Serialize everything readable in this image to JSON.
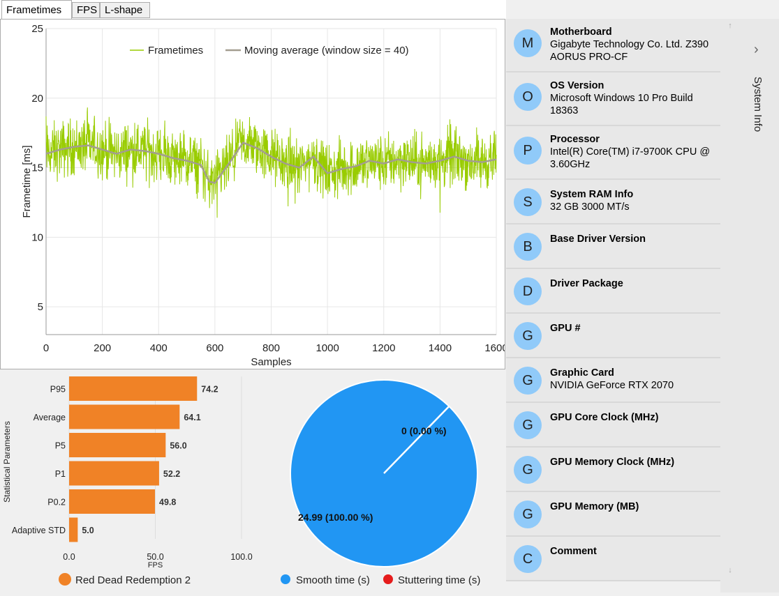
{
  "tabs": [
    {
      "label": "Frametimes",
      "active": true
    },
    {
      "label": "FPS",
      "active": false
    },
    {
      "label": "L-shape",
      "active": false
    }
  ],
  "colors": {
    "frametime_line": "#99cc00",
    "moving_average": "#a39d8f",
    "bar": "#f08226",
    "smooth": "#2196f3",
    "stutter": "#e51c1c",
    "avatar": "#90caf9"
  },
  "chart_data": [
    {
      "type": "line",
      "name": "frametimes-chart",
      "xlabel": "Samples",
      "ylabel": "Frametime [ms]",
      "xlim": [
        0,
        1600
      ],
      "ylim": [
        3,
        25
      ],
      "x_ticks": [
        "0",
        "200",
        "400",
        "600",
        "800",
        "1000",
        "1200",
        "1400",
        "1600"
      ],
      "y_ticks": [
        "5",
        "10",
        "15",
        "20",
        "25"
      ],
      "grid": true,
      "legend_position": "top",
      "series": [
        {
          "name": "Frametimes",
          "note_values": "noisy per-sample frametimes around the moving average with ~±1.5ms noise"
        },
        {
          "name": "Moving average (window size = 40)",
          "x": [
            0,
            50,
            100,
            150,
            200,
            250,
            300,
            350,
            400,
            450,
            500,
            550,
            580,
            600,
            650,
            700,
            750,
            800,
            850,
            900,
            950,
            1000,
            1050,
            1100,
            1150,
            1200,
            1250,
            1300,
            1350,
            1400,
            1450,
            1500,
            1550,
            1600
          ],
          "values": [
            16.0,
            16.3,
            16.5,
            16.6,
            16.3,
            16.0,
            16.3,
            16.2,
            16.0,
            15.7,
            15.5,
            15.2,
            14.0,
            13.9,
            15.3,
            16.8,
            16.4,
            15.8,
            15.3,
            15.0,
            15.8,
            14.6,
            14.9,
            15.1,
            15.5,
            15.3,
            15.6,
            15.4,
            15.3,
            15.5,
            15.8,
            15.5,
            15.4,
            15.6
          ]
        }
      ]
    },
    {
      "type": "bar",
      "name": "fps-statistics-chart",
      "orientation": "horizontal",
      "ylabel": "Statistical Parameters",
      "xlabel": "FPS",
      "xlim": [
        0,
        100
      ],
      "x_ticks": [
        "0.0",
        "50.0",
        "100.0"
      ],
      "categories": [
        "P95",
        "Average",
        "P5",
        "P1",
        "P0.2",
        "Adaptive STD"
      ],
      "values": [
        74.2,
        64.1,
        56.0,
        52.2,
        49.8,
        5.0
      ],
      "value_labels": [
        "74.2",
        "64.1",
        "56.0",
        "52.2",
        "49.8",
        "5.0"
      ],
      "series_name": "Red Dead Redemption 2"
    },
    {
      "type": "pie",
      "name": "stutter-pie-chart",
      "slices": [
        {
          "name": "Smooth time (s)",
          "value": 24.99,
          "label": "24.99 (100.00 %)"
        },
        {
          "name": "Stuttering time (s)",
          "value": 0,
          "label": "0 (0.00 %)"
        }
      ]
    }
  ],
  "system_info": [
    {
      "avatar": "M",
      "title": "Motherboard",
      "value": "Gigabyte Technology Co. Ltd. Z390 AORUS PRO-CF"
    },
    {
      "avatar": "O",
      "title": "OS Version",
      "value": "Microsoft Windows 10 Pro Build 18363"
    },
    {
      "avatar": "P",
      "title": "Processor",
      "value": "Intel(R) Core(TM) i7-9700K CPU @ 3.60GHz"
    },
    {
      "avatar": "S",
      "title": "System RAM Info",
      "value": "32 GB 3000 MT/s"
    },
    {
      "avatar": "B",
      "title": "Base Driver Version",
      "value": ""
    },
    {
      "avatar": "D",
      "title": "Driver Package",
      "value": ""
    },
    {
      "avatar": "G",
      "title": "GPU #",
      "value": ""
    },
    {
      "avatar": "G",
      "title": "Graphic Card",
      "value": "NVIDIA GeForce RTX 2070"
    },
    {
      "avatar": "G",
      "title": "GPU Core Clock (MHz)",
      "value": ""
    },
    {
      "avatar": "G",
      "title": "GPU Memory Clock (MHz)",
      "value": ""
    },
    {
      "avatar": "G",
      "title": "GPU Memory (MB)",
      "value": ""
    },
    {
      "avatar": "C",
      "title": "Comment",
      "value": ""
    }
  ],
  "side_panel": {
    "label": "System Info",
    "icon": "chevron-right-icon"
  },
  "scroll": {
    "up_icon": "arrow-up-icon",
    "down_icon": "arrow-down-icon"
  }
}
